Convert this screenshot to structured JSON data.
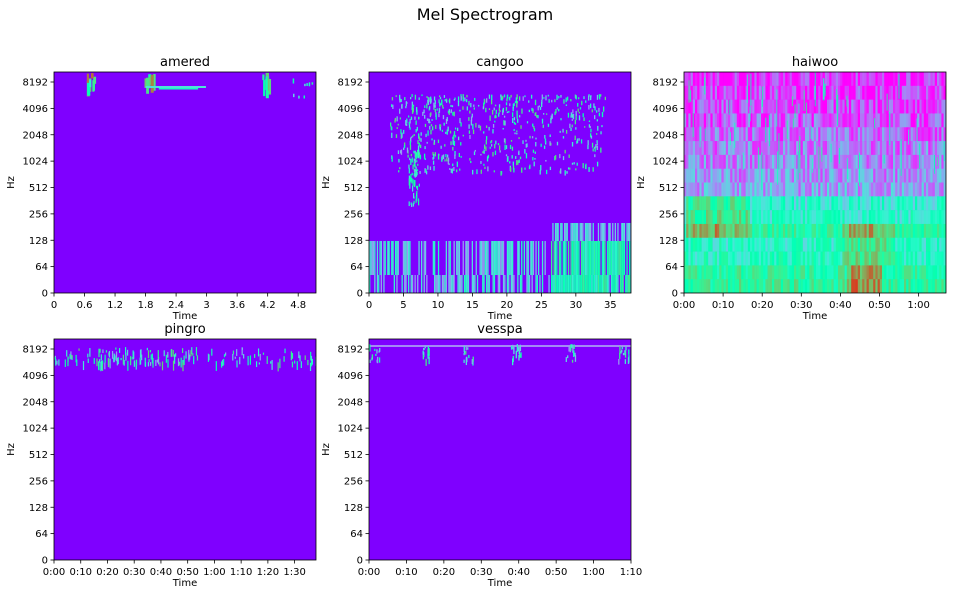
{
  "figure": {
    "title": "Mel Spectrogram"
  },
  "colors": {
    "background": "#7f00ff"
  },
  "chart_data": [
    {
      "type": "heatmap",
      "title": "amered",
      "xlabel": "Time",
      "ylabel": "Hz",
      "x_ticks": [
        "0",
        "0.6",
        "1.2",
        "1.8",
        "2.4",
        "3",
        "3.6",
        "4.2",
        "4.8"
      ],
      "x_range": [
        0,
        5.15
      ],
      "y_ticks": [
        "0",
        "64",
        "128",
        "256",
        "512",
        "1024",
        "2048",
        "4096",
        "8192"
      ]
    },
    {
      "type": "heatmap",
      "title": "cangoo",
      "xlabel": "Time",
      "ylabel": "Hz",
      "x_ticks": [
        "0",
        "5",
        "10",
        "15",
        "20",
        "25",
        "30",
        "35"
      ],
      "x_range": [
        0,
        38
      ],
      "y_ticks": [
        "0",
        "64",
        "128",
        "256",
        "512",
        "1024",
        "2048",
        "4096",
        "8192"
      ]
    },
    {
      "type": "heatmap",
      "title": "haiwoo",
      "xlabel": "Time",
      "ylabel": "Hz",
      "x_ticks": [
        "0:00",
        "0:10",
        "0:20",
        "0:30",
        "0:40",
        "0:50",
        "1:00"
      ],
      "x_range": [
        0,
        67
      ],
      "y_ticks": [
        "0",
        "64",
        "128",
        "256",
        "512",
        "1024",
        "2048",
        "4096",
        "8192"
      ]
    },
    {
      "type": "heatmap",
      "title": "pingro",
      "xlabel": "Time",
      "ylabel": "Hz",
      "x_ticks": [
        "0:00",
        "0:10",
        "0:20",
        "0:30",
        "0:40",
        "0:50",
        "1:00",
        "1:10",
        "1:20",
        "1:30"
      ],
      "x_range": [
        0,
        98
      ],
      "y_ticks": [
        "0",
        "64",
        "128",
        "256",
        "512",
        "1024",
        "2048",
        "4096",
        "8192"
      ]
    },
    {
      "type": "heatmap",
      "title": "vesspa",
      "xlabel": "Time",
      "ylabel": "Hz",
      "x_ticks": [
        "0:00",
        "0:10",
        "0:20",
        "0:30",
        "0:40",
        "0:50",
        "1:00",
        "1:10"
      ],
      "x_range": [
        0,
        70
      ],
      "y_ticks": [
        "0",
        "64",
        "128",
        "256",
        "512",
        "1024",
        "2048",
        "4096",
        "8192"
      ]
    }
  ]
}
